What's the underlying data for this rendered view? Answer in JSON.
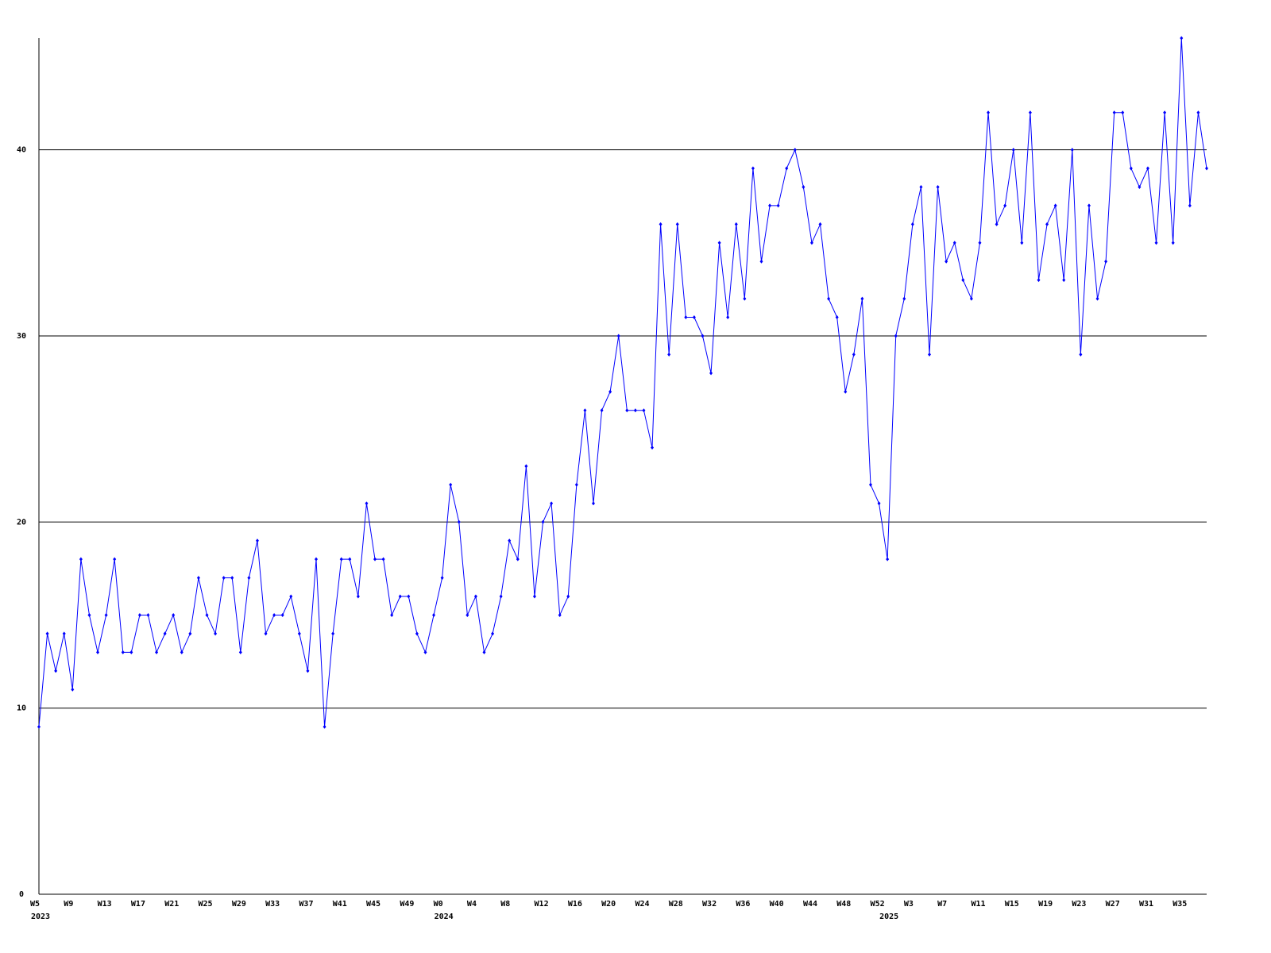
{
  "chart_data": {
    "type": "line",
    "categories": [
      "W5",
      null,
      null,
      null,
      "W9",
      null,
      null,
      null,
      "W13",
      null,
      null,
      null,
      "W17",
      null,
      null,
      null,
      "W21",
      null,
      null,
      null,
      "W25",
      null,
      null,
      null,
      "W29",
      null,
      null,
      null,
      "W33",
      null,
      null,
      null,
      "W37",
      null,
      null,
      null,
      "W41",
      null,
      null,
      null,
      "W45",
      null,
      null,
      null,
      "W49",
      null,
      null,
      null,
      "W0",
      null,
      null,
      null,
      "W4",
      null,
      null,
      null,
      "W8",
      null,
      null,
      null,
      "W12",
      null,
      null,
      null,
      "W16",
      null,
      null,
      null,
      "W20",
      null,
      null,
      null,
      "W24",
      null,
      null,
      null,
      "W28",
      null,
      null,
      null,
      "W32",
      null,
      null,
      null,
      "W36",
      null,
      null,
      null,
      "W40",
      null,
      null,
      null,
      "W44",
      null,
      null,
      null,
      "W48",
      null,
      null,
      null,
      "W52",
      null,
      null,
      null,
      "W3",
      null,
      null,
      null,
      "W7",
      null,
      null,
      null,
      "W11",
      null,
      null,
      null,
      "W15",
      null,
      null,
      null,
      "W19",
      null,
      null,
      null,
      "W23",
      null,
      null,
      null,
      "W27",
      null,
      null,
      null,
      "W31",
      null,
      null,
      null,
      "W35",
      null,
      null,
      null
    ],
    "year_labels": [
      "2023",
      null,
      null,
      null,
      null,
      null,
      null,
      null,
      null,
      null,
      null,
      null,
      null,
      null,
      null,
      null,
      null,
      null,
      null,
      null,
      null,
      null,
      null,
      null,
      null,
      null,
      null,
      null,
      null,
      null,
      null,
      null,
      null,
      null,
      null,
      null,
      null,
      null,
      null,
      null,
      null,
      null,
      null,
      null,
      null,
      null,
      null,
      null,
      "2024",
      null,
      null,
      null,
      null,
      null,
      null,
      null,
      null,
      null,
      null,
      null,
      null,
      null,
      null,
      null,
      null,
      null,
      null,
      null,
      null,
      null,
      null,
      null,
      null,
      null,
      null,
      null,
      null,
      null,
      null,
      null,
      null,
      null,
      null,
      null,
      null,
      null,
      null,
      null,
      null,
      null,
      null,
      null,
      null,
      null,
      null,
      null,
      null,
      null,
      null,
      null,
      null,
      "2025",
      null,
      null,
      null,
      null,
      null,
      null,
      null,
      null,
      null,
      null,
      null,
      null,
      null,
      null,
      null,
      null,
      null,
      null,
      null,
      null,
      null,
      null,
      null,
      null,
      null,
      null,
      null,
      null,
      null,
      null,
      null,
      null,
      null,
      null,
      null,
      null,
      null
    ],
    "series": [
      {
        "color": "#0000ff",
        "values": [
          9,
          14,
          12,
          14,
          11,
          18,
          15,
          13,
          15,
          18,
          13,
          13,
          15,
          15,
          13,
          14,
          15,
          13,
          14,
          17,
          15,
          14,
          17,
          17,
          13,
          17,
          19,
          14,
          15,
          15,
          16,
          14,
          12,
          18,
          9,
          14,
          18,
          18,
          16,
          21,
          18,
          18,
          15,
          16,
          16,
          14,
          13,
          15,
          17,
          22,
          20,
          15,
          16,
          13,
          14,
          16,
          19,
          18,
          23,
          16,
          20,
          21,
          15,
          16,
          22,
          26,
          21,
          26,
          27,
          30,
          26,
          26,
          26,
          24,
          36,
          29,
          36,
          31,
          31,
          30,
          28,
          35,
          31,
          36,
          32,
          39,
          34,
          37,
          37,
          39,
          40,
          38,
          35,
          36,
          32,
          31,
          27,
          29,
          32,
          22,
          21,
          18,
          30,
          32,
          36,
          38,
          29,
          38,
          34,
          35,
          33,
          32,
          35,
          42,
          36,
          37,
          40,
          35,
          42,
          33,
          36,
          37,
          33,
          40,
          29,
          37,
          32,
          34,
          42,
          42,
          39,
          38,
          39,
          35,
          42,
          35,
          46,
          37,
          42,
          39
        ]
      }
    ],
    "ylim": [
      0,
      46
    ],
    "yticks": [
      0,
      10,
      20,
      30,
      40
    ],
    "grid": true
  }
}
